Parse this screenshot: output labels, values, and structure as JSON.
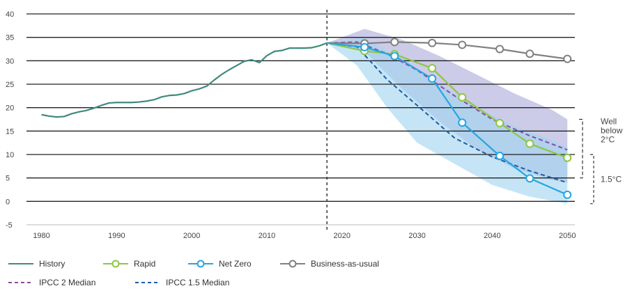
{
  "chart_data": {
    "type": "line",
    "xlabel": "",
    "ylabel": "",
    "xlim": [
      1978,
      2051
    ],
    "ylim": [
      -5,
      40
    ],
    "x_ticks": [
      1980,
      1990,
      2000,
      2010,
      2020,
      2030,
      2040,
      2050
    ],
    "y_ticks": [
      -5,
      0,
      5,
      10,
      15,
      20,
      25,
      30,
      35,
      40
    ],
    "divider_year": 2018,
    "series": [
      {
        "name": "History",
        "color": "#3f8a7d",
        "style": "solid",
        "markers": false,
        "points": [
          [
            1980,
            18.5
          ],
          [
            1981,
            18.2
          ],
          [
            1982,
            18.0
          ],
          [
            1983,
            18.1
          ],
          [
            1984,
            18.7
          ],
          [
            1985,
            19.1
          ],
          [
            1986,
            19.4
          ],
          [
            1987,
            19.9
          ],
          [
            1988,
            20.5
          ],
          [
            1989,
            21.0
          ],
          [
            1990,
            21.1
          ],
          [
            1991,
            21.1
          ],
          [
            1992,
            21.1
          ],
          [
            1993,
            21.2
          ],
          [
            1994,
            21.4
          ],
          [
            1995,
            21.7
          ],
          [
            1996,
            22.3
          ],
          [
            1997,
            22.6
          ],
          [
            1998,
            22.7
          ],
          [
            1999,
            23.0
          ],
          [
            2000,
            23.6
          ],
          [
            2001,
            24.0
          ],
          [
            2002,
            24.6
          ],
          [
            2003,
            25.9
          ],
          [
            2004,
            27.1
          ],
          [
            2005,
            28.1
          ],
          [
            2006,
            29.0
          ],
          [
            2007,
            29.9
          ],
          [
            2008,
            30.2
          ],
          [
            2009,
            29.6
          ],
          [
            2010,
            31.1
          ],
          [
            2011,
            32.0
          ],
          [
            2012,
            32.2
          ],
          [
            2013,
            32.7
          ],
          [
            2014,
            32.7
          ],
          [
            2015,
            32.7
          ],
          [
            2016,
            32.8
          ],
          [
            2017,
            33.2
          ],
          [
            2018,
            33.8
          ]
        ]
      },
      {
        "name": "Rapid",
        "color": "#8dc63f",
        "style": "solid",
        "markers": true,
        "points": [
          [
            2018,
            33.8
          ],
          [
            2023,
            32.1
          ],
          [
            2027,
            31.4
          ],
          [
            2032,
            28.4
          ],
          [
            2036,
            22.2
          ],
          [
            2041,
            16.7
          ],
          [
            2045,
            12.3
          ],
          [
            2050,
            9.3
          ]
        ]
      },
      {
        "name": "Net Zero",
        "color": "#23a6e0",
        "style": "solid",
        "markers": true,
        "points": [
          [
            2018,
            33.8
          ],
          [
            2023,
            32.9
          ],
          [
            2027,
            31.0
          ],
          [
            2032,
            26.2
          ],
          [
            2036,
            16.8
          ],
          [
            2041,
            9.7
          ],
          [
            2045,
            4.9
          ],
          [
            2050,
            1.4
          ]
        ]
      },
      {
        "name": "Business-as-usual",
        "color": "#808080",
        "style": "solid",
        "markers": true,
        "points": [
          [
            2018,
            33.8
          ],
          [
            2023,
            33.7
          ],
          [
            2027,
            34.0
          ],
          [
            2032,
            33.8
          ],
          [
            2036,
            33.4
          ],
          [
            2041,
            32.5
          ],
          [
            2045,
            31.5
          ],
          [
            2050,
            30.4
          ]
        ]
      },
      {
        "name": "IPCC 2 Median",
        "color": "#8e4a9e",
        "style": "dashed",
        "markers": false,
        "points": [
          [
            2018,
            33.8
          ],
          [
            2022,
            34.0
          ],
          [
            2026,
            31.5
          ],
          [
            2030,
            28.0
          ],
          [
            2035,
            22.5
          ],
          [
            2040,
            17.5
          ],
          [
            2045,
            14.0
          ],
          [
            2050,
            11.0
          ]
        ]
      },
      {
        "name": "IPCC 1.5 Median",
        "color": "#1f5aa6",
        "style": "dashed",
        "markers": false,
        "points": [
          [
            2018,
            33.8
          ],
          [
            2022,
            33.0
          ],
          [
            2026,
            26.0
          ],
          [
            2030,
            20.5
          ],
          [
            2035,
            13.5
          ],
          [
            2040,
            9.5
          ],
          [
            2045,
            6.5
          ],
          [
            2050,
            4.0
          ]
        ]
      }
    ],
    "bands": [
      {
        "name": "IPCC 2 range",
        "color": "#9a9ad4",
        "opacity": 0.5,
        "upper": [
          [
            2018,
            33.8
          ],
          [
            2023,
            36.8
          ],
          [
            2028,
            34.5
          ],
          [
            2033,
            31.0
          ],
          [
            2038,
            27.0
          ],
          [
            2043,
            23.0
          ],
          [
            2048,
            19.5
          ],
          [
            2050,
            17.5
          ]
        ],
        "lower": [
          [
            2018,
            33.8
          ],
          [
            2023,
            32.0
          ],
          [
            2028,
            24.0
          ],
          [
            2033,
            17.0
          ],
          [
            2038,
            11.0
          ],
          [
            2043,
            7.0
          ],
          [
            2048,
            4.5
          ],
          [
            2050,
            4.0
          ]
        ]
      },
      {
        "name": "IPCC 1.5 range",
        "color": "#9fd3f0",
        "opacity": 0.6,
        "upper": [
          [
            2018,
            33.8
          ],
          [
            2023,
            35.0
          ],
          [
            2028,
            30.0
          ],
          [
            2033,
            25.0
          ],
          [
            2038,
            20.0
          ],
          [
            2043,
            16.0
          ],
          [
            2048,
            13.0
          ],
          [
            2050,
            11.5
          ]
        ],
        "lower": [
          [
            2018,
            33.8
          ],
          [
            2022,
            29.0
          ],
          [
            2026,
            20.0
          ],
          [
            2030,
            12.5
          ],
          [
            2035,
            8.0
          ],
          [
            2040,
            3.5
          ],
          [
            2045,
            1.0
          ],
          [
            2050,
            -0.5
          ]
        ]
      }
    ],
    "annotations": [
      {
        "text_lines": [
          "Well",
          "below",
          "2°C"
        ],
        "range": [
          5.0,
          17.5
        ]
      },
      {
        "text_lines": [
          "1.5°C"
        ],
        "range": [
          -0.5,
          10.0
        ]
      }
    ],
    "legend": {
      "position": "bottom",
      "labels": [
        "History",
        "Rapid",
        "Net Zero",
        "Business-as-usual",
        "IPCC 2 Median",
        "IPCC 1.5 Median"
      ]
    }
  }
}
